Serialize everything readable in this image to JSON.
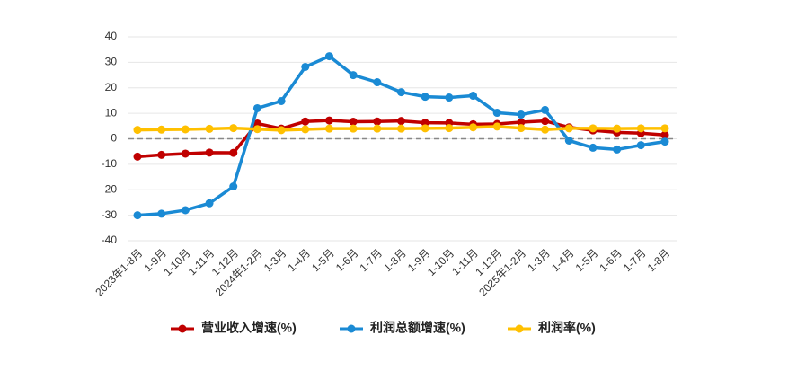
{
  "chart_data": {
    "type": "line",
    "categories": [
      "2023年1-8月",
      "1-9月",
      "1-10月",
      "1-11月",
      "1-12月",
      "2024年1-2月",
      "1-3月",
      "1-4月",
      "1-5月",
      "1-6月",
      "1-7月",
      "1-8月",
      "1-9月",
      "1-10月",
      "1-11月",
      "1-12月",
      "2025年1-2月",
      "1-3月",
      "1-4月",
      "1-5月",
      "1-6月",
      "1-7月",
      "1-8月"
    ],
    "series": [
      {
        "name": "营业收入增速(%)",
        "color": "#c00000",
        "values": [
          -7,
          -6.3,
          -5.8,
          -5.4,
          -5.5,
          6,
          4,
          6.8,
          7.2,
          6.7,
          6.8,
          7,
          6.3,
          6.2,
          5.7,
          5.8,
          6.5,
          7,
          4.5,
          3.3,
          2.5,
          2.2,
          1.5
        ]
      },
      {
        "name": "利润总额增速(%)",
        "color": "#1a8ad4",
        "values": [
          -30,
          -29.4,
          -28,
          -25.3,
          -18.7,
          12,
          14.8,
          28.2,
          32.4,
          25,
          22.2,
          18.3,
          16.5,
          16.2,
          16.9,
          10.2,
          9.5,
          11.3,
          -0.7,
          -3.5,
          -4.2,
          -2.5,
          -1.1
        ]
      },
      {
        "name": "利润率(%)",
        "color": "#ffc000",
        "values": [
          3.5,
          3.6,
          3.7,
          3.9,
          4.2,
          3.8,
          3.4,
          3.7,
          4.0,
          4.0,
          4.0,
          4.0,
          4.1,
          4.2,
          4.5,
          4.8,
          4.2,
          3.6,
          4.1,
          4.1,
          4.0,
          4.1,
          4.1
        ]
      }
    ],
    "ylim": [
      -40,
      40
    ],
    "yticks": [
      -40,
      -30,
      -20,
      -10,
      0,
      10,
      20,
      30,
      40
    ],
    "grid": true
  }
}
